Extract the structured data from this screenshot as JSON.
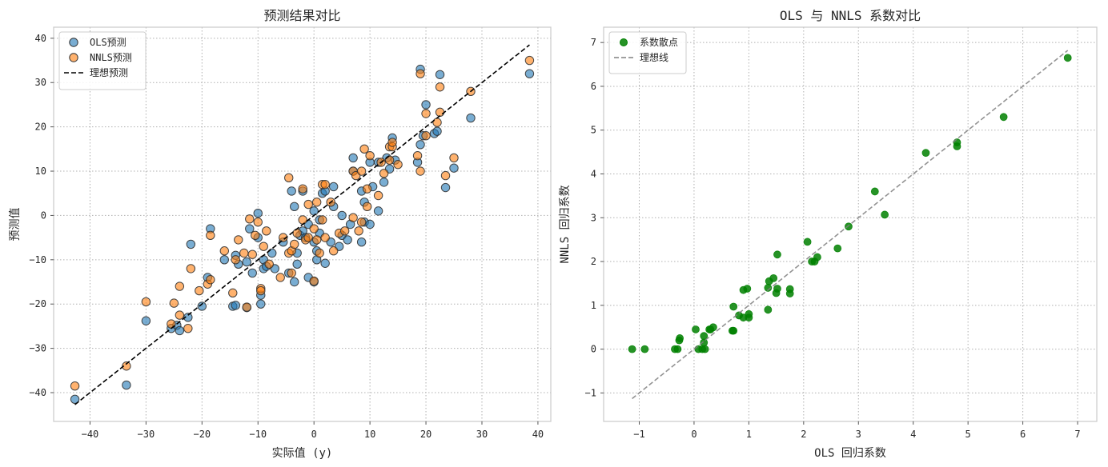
{
  "chart_data": [
    {
      "type": "scatter",
      "title": "预测结果对比",
      "xlabel": "实际值 (y)",
      "ylabel": "预测值",
      "xlim": [
        -46.5,
        42.3
      ],
      "ylim": [
        -46.5,
        42.5
      ],
      "xticks": [
        -40,
        -30,
        -20,
        -10,
        0,
        10,
        20,
        30,
        40
      ],
      "yticks": [
        -40,
        -30,
        -20,
        -10,
        0,
        10,
        20,
        30,
        40
      ],
      "grid": true,
      "legend_position": "top-left",
      "series": [
        {
          "name": "OLS预测",
          "kind": "scatter",
          "color": "#1f77b4",
          "points": [
            [
              -42.7,
              -41.5
            ],
            [
              -33.5,
              -38.3
            ],
            [
              -30.0,
              -23.8
            ],
            [
              -25.5,
              -25.5
            ],
            [
              -24.5,
              -24.8
            ],
            [
              -24.0,
              -26.0
            ],
            [
              -22.5,
              -23.0
            ],
            [
              -22.0,
              -6.5
            ],
            [
              -20.0,
              -20.5
            ],
            [
              -19.0,
              -14.0
            ],
            [
              -18.5,
              -3.0
            ],
            [
              -16.0,
              -10.0
            ],
            [
              -14.5,
              -20.5
            ],
            [
              -14.0,
              -20.3
            ],
            [
              -14.0,
              -9.0
            ],
            [
              -13.5,
              -11.0
            ],
            [
              -12.0,
              -20.8
            ],
            [
              -12.0,
              -10.5
            ],
            [
              -11.5,
              -3.0
            ],
            [
              -11.0,
              -13.0
            ],
            [
              -10.0,
              -5.0
            ],
            [
              -10.0,
              0.5
            ],
            [
              -9.5,
              -20.0
            ],
            [
              -9.5,
              -18.0
            ],
            [
              -9.0,
              -12.0
            ],
            [
              -9.0,
              -10.0
            ],
            [
              -8.5,
              -11.5
            ],
            [
              -7.5,
              -8.5
            ],
            [
              -7.0,
              -12.0
            ],
            [
              -5.5,
              -6.0
            ],
            [
              -4.5,
              -13.0
            ],
            [
              -4.0,
              5.5
            ],
            [
              -3.5,
              2.0
            ],
            [
              -3.5,
              -15.0
            ],
            [
              -3.0,
              -8.5
            ],
            [
              -3.0,
              -11.0
            ],
            [
              -2.5,
              -4.5
            ],
            [
              -2.0,
              -3.5
            ],
            [
              -2.0,
              5.5
            ],
            [
              -1.5,
              -5.0
            ],
            [
              -1.0,
              -14.0
            ],
            [
              -1.0,
              -2.0
            ],
            [
              0.0,
              -15.0
            ],
            [
              0.0,
              1.0
            ],
            [
              0.0,
              -6.0
            ],
            [
              0.5,
              -8.0
            ],
            [
              0.5,
              -10.0
            ],
            [
              1.0,
              -1.0
            ],
            [
              1.0,
              -4.0
            ],
            [
              1.5,
              5.0
            ],
            [
              2.0,
              5.5
            ],
            [
              2.0,
              -10.8
            ],
            [
              3.0,
              -6.0
            ],
            [
              3.5,
              6.5
            ],
            [
              3.5,
              2.0
            ],
            [
              4.5,
              -7.0
            ],
            [
              5.0,
              0.0
            ],
            [
              5.0,
              -4.5
            ],
            [
              6.0,
              -5.5
            ],
            [
              6.5,
              -2.0
            ],
            [
              7.0,
              13.0
            ],
            [
              7.0,
              10.0
            ],
            [
              8.5,
              5.5
            ],
            [
              8.5,
              -6.0
            ],
            [
              9.0,
              -1.5
            ],
            [
              9.0,
              3.0
            ],
            [
              10.0,
              12.0
            ],
            [
              10.0,
              -2.0
            ],
            [
              10.5,
              6.5
            ],
            [
              11.5,
              1.0
            ],
            [
              11.5,
              12.0
            ],
            [
              12.5,
              7.5
            ],
            [
              13.0,
              13.0
            ],
            [
              13.5,
              10.5
            ],
            [
              14.0,
              17.5
            ],
            [
              14.5,
              12.5
            ],
            [
              18.5,
              12.0
            ],
            [
              19.0,
              33.0
            ],
            [
              19.0,
              16.0
            ],
            [
              19.5,
              18.0
            ],
            [
              20.0,
              25.0
            ],
            [
              21.5,
              18.5
            ],
            [
              22.0,
              19.0
            ],
            [
              22.5,
              31.8
            ],
            [
              23.5,
              6.3
            ],
            [
              25.0,
              10.7
            ],
            [
              28.0,
              22.0
            ],
            [
              38.5,
              32.0
            ]
          ]
        },
        {
          "name": "NNLS预测",
          "kind": "scatter",
          "color": "#ff7f0e",
          "points": [
            [
              -42.7,
              -38.5
            ],
            [
              -33.5,
              -34.0
            ],
            [
              -30.0,
              -19.5
            ],
            [
              -25.5,
              -24.5
            ],
            [
              -25.0,
              -19.8
            ],
            [
              -24.0,
              -22.5
            ],
            [
              -24.0,
              -16.0
            ],
            [
              -22.5,
              -25.5
            ],
            [
              -22.0,
              -12.0
            ],
            [
              -20.5,
              -17.0
            ],
            [
              -19.0,
              -15.5
            ],
            [
              -18.5,
              -14.5
            ],
            [
              -18.5,
              -4.5
            ],
            [
              -16.0,
              -8.0
            ],
            [
              -14.5,
              -17.5
            ],
            [
              -14.0,
              -10.0
            ],
            [
              -13.5,
              -5.5
            ],
            [
              -12.5,
              -8.5
            ],
            [
              -12.0,
              -20.7
            ],
            [
              -11.5,
              -0.8
            ],
            [
              -11.0,
              -8.8
            ],
            [
              -10.5,
              -4.5
            ],
            [
              -10.0,
              -1.5
            ],
            [
              -9.5,
              -16.5
            ],
            [
              -9.5,
              -17.0
            ],
            [
              -9.0,
              -7.0
            ],
            [
              -8.5,
              -3.5
            ],
            [
              -8.0,
              -11.0
            ],
            [
              -6.0,
              -14.0
            ],
            [
              -5.5,
              -5.0
            ],
            [
              -4.5,
              -8.5
            ],
            [
              -4.5,
              8.5
            ],
            [
              -4.0,
              -8.0
            ],
            [
              -4.0,
              -13.0
            ],
            [
              -3.5,
              -6.5
            ],
            [
              -3.0,
              -4.0
            ],
            [
              -2.0,
              6.0
            ],
            [
              -2.0,
              -1.0
            ],
            [
              -1.5,
              -5.5
            ],
            [
              -1.0,
              2.5
            ],
            [
              -1.0,
              -5.0
            ],
            [
              0.0,
              -14.8
            ],
            [
              0.0,
              -3.0
            ],
            [
              0.5,
              -5.5
            ],
            [
              0.5,
              3.0
            ],
            [
              1.0,
              -8.5
            ],
            [
              1.5,
              7.0
            ],
            [
              1.5,
              -1.0
            ],
            [
              2.0,
              7.0
            ],
            [
              2.0,
              -5.0
            ],
            [
              3.0,
              3.0
            ],
            [
              3.5,
              -8.0
            ],
            [
              4.5,
              -4.0
            ],
            [
              5.5,
              -3.5
            ],
            [
              7.0,
              -0.5
            ],
            [
              7.0,
              10.0
            ],
            [
              7.5,
              9.0
            ],
            [
              8.0,
              -3.5
            ],
            [
              8.5,
              -1.5
            ],
            [
              8.5,
              10.0
            ],
            [
              9.0,
              15.0
            ],
            [
              9.5,
              2.0
            ],
            [
              9.5,
              6.0
            ],
            [
              10.0,
              13.5
            ],
            [
              11.5,
              4.5
            ],
            [
              12.0,
              12.0
            ],
            [
              12.5,
              9.5
            ],
            [
              13.5,
              15.5
            ],
            [
              13.5,
              12.5
            ],
            [
              14.0,
              15.5
            ],
            [
              14.0,
              16.5
            ],
            [
              15.0,
              11.5
            ],
            [
              18.5,
              13.5
            ],
            [
              19.0,
              10.0
            ],
            [
              19.0,
              32.0
            ],
            [
              20.0,
              18.0
            ],
            [
              20.0,
              23.0
            ],
            [
              22.0,
              21.0
            ],
            [
              22.5,
              23.3
            ],
            [
              22.5,
              29.0
            ],
            [
              23.5,
              9.0
            ],
            [
              25.0,
              13.0
            ],
            [
              28.0,
              28.0
            ],
            [
              38.5,
              35.0
            ]
          ]
        },
        {
          "name": "理想预测",
          "kind": "line",
          "color": "#000000",
          "points": [
            [
              -42.7,
              -42.7
            ],
            [
              38.5,
              38.5
            ]
          ]
        }
      ]
    },
    {
      "type": "scatter",
      "title": "OLS 与 NNLS 系数对比",
      "xlabel": "OLS 回归系数",
      "ylabel": "NNLS 回归系数",
      "xlim": [
        -1.65,
        7.35
      ],
      "ylim": [
        -1.65,
        7.35
      ],
      "xticks": [
        -1,
        0,
        1,
        2,
        3,
        4,
        5,
        6,
        7
      ],
      "yticks": [
        -1,
        0,
        1,
        2,
        3,
        4,
        5,
        6,
        7
      ],
      "grid": true,
      "legend_position": "top-left",
      "series": [
        {
          "name": "系数散点",
          "kind": "scatter",
          "color": "#008000",
          "points": [
            [
              -1.13,
              0.0
            ],
            [
              -0.9,
              0.0
            ],
            [
              -0.35,
              0.0
            ],
            [
              -0.3,
              0.0
            ],
            [
              -0.27,
              0.2
            ],
            [
              -0.26,
              0.25
            ],
            [
              0.03,
              0.45
            ],
            [
              0.08,
              0.0
            ],
            [
              0.15,
              0.0
            ],
            [
              0.18,
              0.3
            ],
            [
              0.18,
              0.15
            ],
            [
              0.2,
              0.0
            ],
            [
              0.28,
              0.45
            ],
            [
              0.3,
              0.45
            ],
            [
              0.35,
              0.5
            ],
            [
              0.7,
              0.42
            ],
            [
              0.72,
              0.42
            ],
            [
              0.72,
              0.97
            ],
            [
              0.82,
              0.77
            ],
            [
              0.9,
              0.72
            ],
            [
              0.9,
              1.35
            ],
            [
              0.97,
              1.38
            ],
            [
              1.0,
              0.72
            ],
            [
              1.0,
              0.8
            ],
            [
              1.35,
              0.9
            ],
            [
              1.35,
              1.4
            ],
            [
              1.37,
              1.55
            ],
            [
              1.45,
              1.62
            ],
            [
              1.5,
              1.28
            ],
            [
              1.52,
              2.16
            ],
            [
              1.52,
              1.38
            ],
            [
              1.75,
              1.27
            ],
            [
              1.75,
              1.37
            ],
            [
              2.07,
              2.45
            ],
            [
              2.15,
              2.0
            ],
            [
              2.2,
              2.0
            ],
            [
              2.25,
              2.1
            ],
            [
              2.62,
              2.3
            ],
            [
              2.82,
              2.8
            ],
            [
              3.3,
              3.6
            ],
            [
              3.48,
              3.07
            ],
            [
              4.23,
              4.48
            ],
            [
              4.8,
              4.72
            ],
            [
              4.8,
              4.63
            ],
            [
              5.65,
              5.3
            ],
            [
              6.82,
              6.65
            ]
          ]
        },
        {
          "name": "理想线",
          "kind": "line",
          "color": "#808080",
          "points": [
            [
              -1.13,
              -1.13
            ],
            [
              6.82,
              6.82
            ]
          ]
        }
      ]
    }
  ]
}
